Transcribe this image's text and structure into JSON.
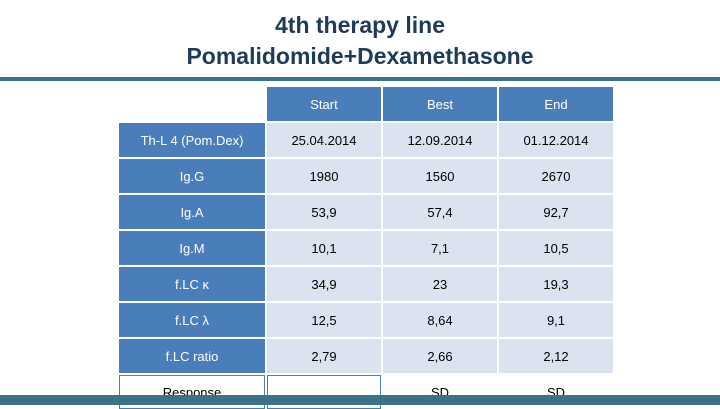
{
  "title": {
    "line1": "4th therapy line",
    "line2": "Pomalidomide+Dexamethasone"
  },
  "table": {
    "columns": [
      "Start",
      "Best",
      "End"
    ],
    "rows": [
      {
        "label": "Th-L 4 (Pom.Dex)",
        "values": [
          "25.04.2014",
          "12.09.2014",
          "01.12.2014"
        ]
      },
      {
        "label": "Ig.G",
        "values": [
          "1980",
          "1560",
          "2670"
        ]
      },
      {
        "label": "Ig.A",
        "values": [
          "53,9",
          "57,4",
          "92,7"
        ]
      },
      {
        "label": "Ig.M",
        "values": [
          "10,1",
          "7,1",
          "10,5"
        ]
      },
      {
        "label": "f.LC κ",
        "values": [
          "34,9",
          "23",
          "19,3"
        ]
      },
      {
        "label": "f.LC λ",
        "values": [
          "12,5",
          "8,64",
          "9,1"
        ]
      },
      {
        "label": "f.LC ratio",
        "values": [
          "2,79",
          "2,66",
          "2,12"
        ]
      },
      {
        "label": "Response",
        "values": [
          "",
          "SD",
          "SD"
        ]
      }
    ]
  },
  "colors": {
    "header": "#4a7ebb",
    "cell": "#dbe3f1",
    "accent_bar": "#3b7189",
    "title": "#1f3b5a"
  }
}
